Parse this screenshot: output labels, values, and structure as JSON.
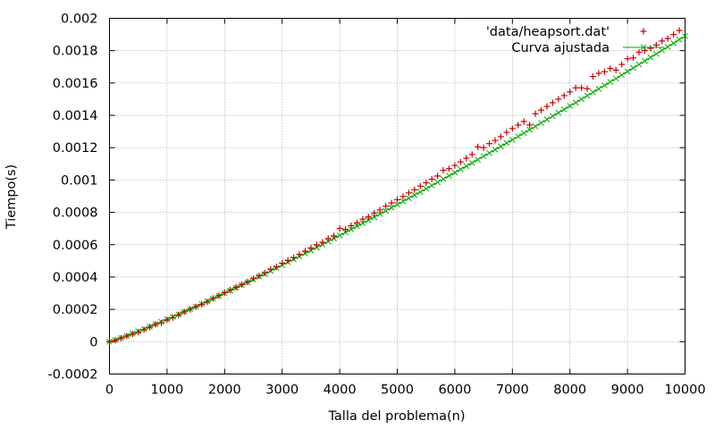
{
  "chart_data": {
    "type": "scatter",
    "xlabel": "Talla del problema(n)",
    "ylabel": "Tiempo(s)",
    "xlim": [
      0,
      10000
    ],
    "ylim": [
      -0.0002,
      0.002
    ],
    "x_ticks": [
      "0",
      "1000",
      "2000",
      "3000",
      "4000",
      "5000",
      "6000",
      "7000",
      "8000",
      "9000",
      "10000"
    ],
    "y_ticks": [
      "-0.0002",
      "0",
      "0.0002",
      "0.0004",
      "0.0006",
      "0.0008",
      "0.001",
      "0.0012",
      "0.0014",
      "0.0016",
      "0.0018",
      "0.002"
    ],
    "grid": true,
    "legend": "top-right",
    "colors": {
      "data": "#cc0000",
      "fit": "#00aa00"
    },
    "series": [
      {
        "name": "'data/heapsort.dat'",
        "style": "points",
        "marker": "+",
        "x": [
          0,
          100,
          200,
          300,
          400,
          500,
          600,
          700,
          800,
          900,
          1000,
          1100,
          1200,
          1300,
          1400,
          1500,
          1600,
          1700,
          1800,
          1900,
          2000,
          2100,
          2200,
          2300,
          2400,
          2500,
          2600,
          2700,
          2800,
          2900,
          3000,
          3100,
          3200,
          3300,
          3400,
          3500,
          3600,
          3700,
          3800,
          3900,
          4000,
          4100,
          4200,
          4300,
          4400,
          4500,
          4600,
          4700,
          4800,
          4900,
          5000,
          5100,
          5200,
          5300,
          5400,
          5500,
          5600,
          5700,
          5800,
          5900,
          6000,
          6100,
          6200,
          6300,
          6400,
          6500,
          6600,
          6700,
          6800,
          6900,
          7000,
          7100,
          7200,
          7300,
          7400,
          7500,
          7600,
          7700,
          7800,
          7900,
          8000,
          8100,
          8200,
          8300,
          8400,
          8500,
          8600,
          8700,
          8800,
          8900,
          9000,
          9100,
          9200,
          9300,
          9400,
          9500,
          9600,
          9700,
          9800,
          9900
        ],
        "y": [
          0.0,
          8e-06,
          2.2e-05,
          3.5e-05,
          4.7e-05,
          5.9e-05,
          7.4e-05,
          9e-05,
          0.000107,
          0.000116,
          0.000135,
          0.000148,
          0.000165,
          0.000185,
          0.0002,
          0.000216,
          0.00023,
          0.000246,
          0.000268,
          0.000285,
          0.000303,
          0.00032,
          0.000336,
          0.000353,
          0.00037,
          0.00039,
          0.000408,
          0.000425,
          0.000448,
          0.000462,
          0.000485,
          0.000503,
          0.00052,
          0.00054,
          0.00056,
          0.00058,
          0.0006,
          0.000615,
          0.000638,
          0.000655,
          0.0007,
          0.000695,
          0.000718,
          0.000735,
          0.000758,
          0.000772,
          0.000795,
          0.000815,
          0.000838,
          0.000858,
          0.000878,
          0.000898,
          0.00092,
          0.00094,
          0.000962,
          0.000983,
          0.001005,
          0.001025,
          0.00106,
          0.00107,
          0.00109,
          0.001112,
          0.001135,
          0.001158,
          0.001205,
          0.0012,
          0.001225,
          0.001245,
          0.001268,
          0.001295,
          0.001318,
          0.00134,
          0.001362,
          0.00134,
          0.00141,
          0.001432,
          0.001455,
          0.001478,
          0.0015,
          0.001522,
          0.001545,
          0.00157,
          0.00157,
          0.001565,
          0.00164,
          0.00166,
          0.00167,
          0.00169,
          0.00168,
          0.001715,
          0.00175,
          0.001755,
          0.00179,
          0.0018,
          0.001815,
          0.001835,
          0.00186,
          0.001875,
          0.0019,
          0.001925
        ]
      },
      {
        "name": "Curva ajustada",
        "style": "linespoints",
        "marker": "x",
        "x": [
          0,
          100,
          200,
          300,
          400,
          500,
          600,
          700,
          800,
          900,
          1000,
          1100,
          1200,
          1300,
          1400,
          1500,
          1600,
          1700,
          1800,
          1900,
          2000,
          2100,
          2200,
          2300,
          2400,
          2500,
          2600,
          2700,
          2800,
          2900,
          3000,
          3100,
          3200,
          3300,
          3400,
          3500,
          3600,
          3700,
          3800,
          3900,
          4000,
          4100,
          4200,
          4300,
          4400,
          4500,
          4600,
          4700,
          4800,
          4900,
          5000,
          5100,
          5200,
          5300,
          5400,
          5500,
          5600,
          5700,
          5800,
          5900,
          6000,
          6100,
          6200,
          6300,
          6400,
          6500,
          6600,
          6700,
          6800,
          6900,
          7000,
          7100,
          7200,
          7300,
          7400,
          7500,
          7600,
          7700,
          7800,
          7900,
          8000,
          8100,
          8200,
          8300,
          8400,
          8500,
          8600,
          8700,
          8800,
          8900,
          9000,
          9100,
          9200,
          9300,
          9400,
          9500,
          9600,
          9700,
          9800,
          9900,
          10000
        ],
        "y": [
          0.0,
          1e-05,
          2.3e-05,
          3.6e-05,
          5e-05,
          6.4e-05,
          7.8e-05,
          9.3e-05,
          0.000108,
          0.000123,
          0.000138,
          0.000154,
          0.000169,
          0.000185,
          0.000201,
          0.000217,
          0.000233,
          0.00025,
          0.000266,
          0.000283,
          0.0003,
          0.000317,
          0.000334,
          0.000351,
          0.000368,
          0.000385,
          0.000403,
          0.00042,
          0.000438,
          0.000456,
          0.000474,
          0.000492,
          0.00051,
          0.000528,
          0.000546,
          0.000564,
          0.000583,
          0.000601,
          0.00062,
          0.000638,
          0.000657,
          0.000676,
          0.000695,
          0.000714,
          0.000733,
          0.000752,
          0.000771,
          0.00079,
          0.000809,
          0.000829,
          0.000848,
          0.000868,
          0.000887,
          0.000907,
          0.000926,
          0.000946,
          0.000966,
          0.000986,
          0.001006,
          0.001026,
          0.001046,
          0.001066,
          0.001086,
          0.001106,
          0.001126,
          0.001147,
          0.001167,
          0.001188,
          0.001208,
          0.001229,
          0.001249,
          0.00127,
          0.00129,
          0.001311,
          0.001332,
          0.001353,
          0.001374,
          0.001395,
          0.001416,
          0.001437,
          0.001458,
          0.001479,
          0.0015,
          0.001521,
          0.001543,
          0.001564,
          0.001585,
          0.001607,
          0.001628,
          0.00165,
          0.001671,
          0.001693,
          0.001715,
          0.001736,
          0.001758,
          0.00178,
          0.001802,
          0.001824,
          0.001846,
          0.001868,
          0.00189
        ]
      }
    ]
  }
}
